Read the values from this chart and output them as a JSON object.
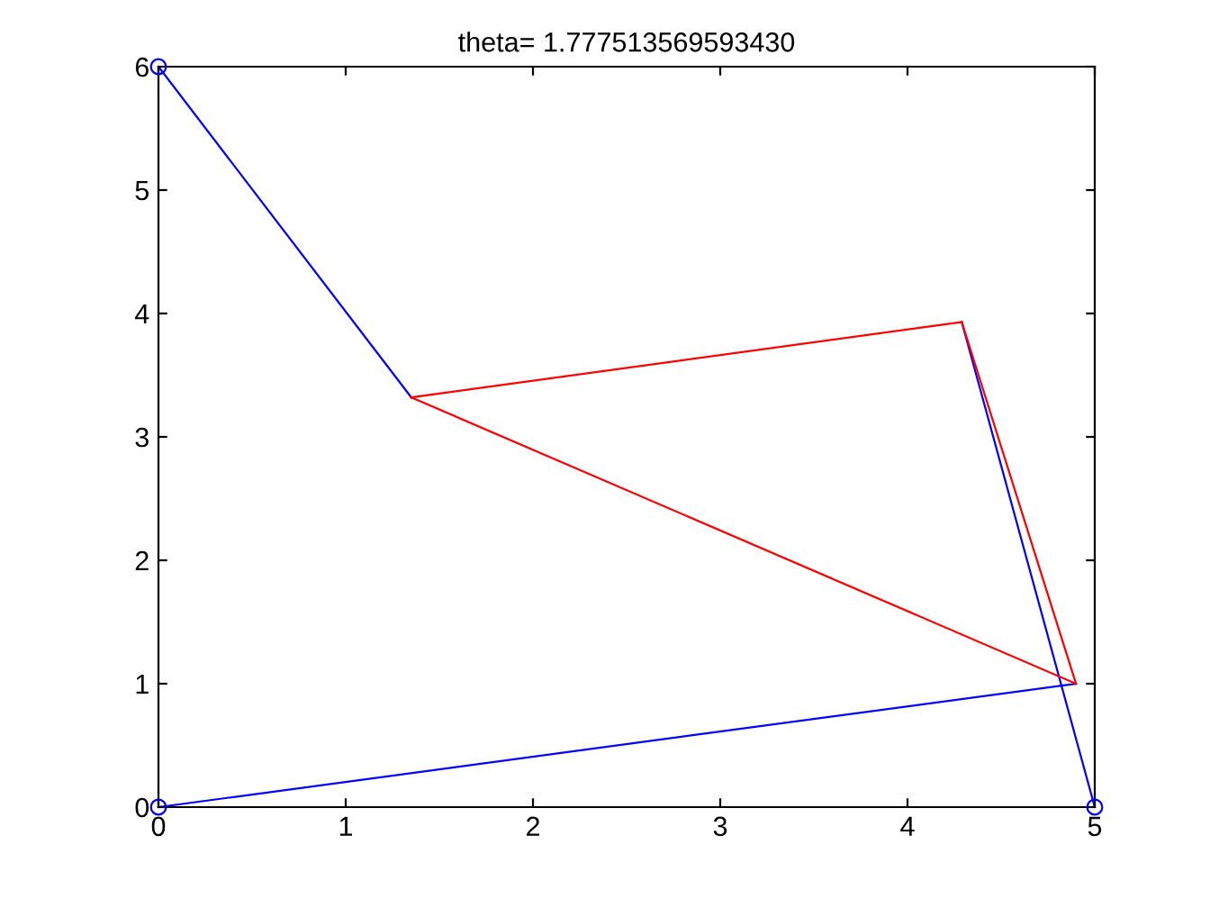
{
  "chart_data": {
    "type": "line",
    "title": "theta= 1.777513569593430",
    "xlim": [
      0,
      5
    ],
    "ylim": [
      0,
      6
    ],
    "xticks": [
      0,
      1,
      2,
      3,
      4,
      5
    ],
    "yticks": [
      0,
      1,
      2,
      3,
      4,
      5,
      6
    ],
    "grid": false,
    "legend": false,
    "line_style": "solid",
    "series": [
      {
        "color": "#0000ff",
        "x": [
          0,
          1.35
        ],
        "values": [
          6,
          3.32
        ]
      },
      {
        "color": "#0000ff",
        "x": [
          0,
          4.9
        ],
        "values": [
          0,
          1.0
        ]
      },
      {
        "color": "#0000ff",
        "x": [
          5,
          4.29
        ],
        "values": [
          0,
          3.93
        ]
      },
      {
        "color": "#ff0000",
        "x": [
          1.35,
          4.29
        ],
        "values": [
          3.32,
          3.93
        ]
      },
      {
        "color": "#ff0000",
        "x": [
          4.29,
          4.9
        ],
        "values": [
          3.93,
          1.0
        ]
      },
      {
        "color": "#ff0000",
        "x": [
          4.9,
          1.35
        ],
        "values": [
          1.0,
          3.32
        ]
      },
      {
        "type": "scatter",
        "color": "#0000ff",
        "marker": "circle",
        "x": [
          0,
          5,
          0
        ],
        "values": [
          0,
          0,
          6
        ]
      }
    ]
  }
}
